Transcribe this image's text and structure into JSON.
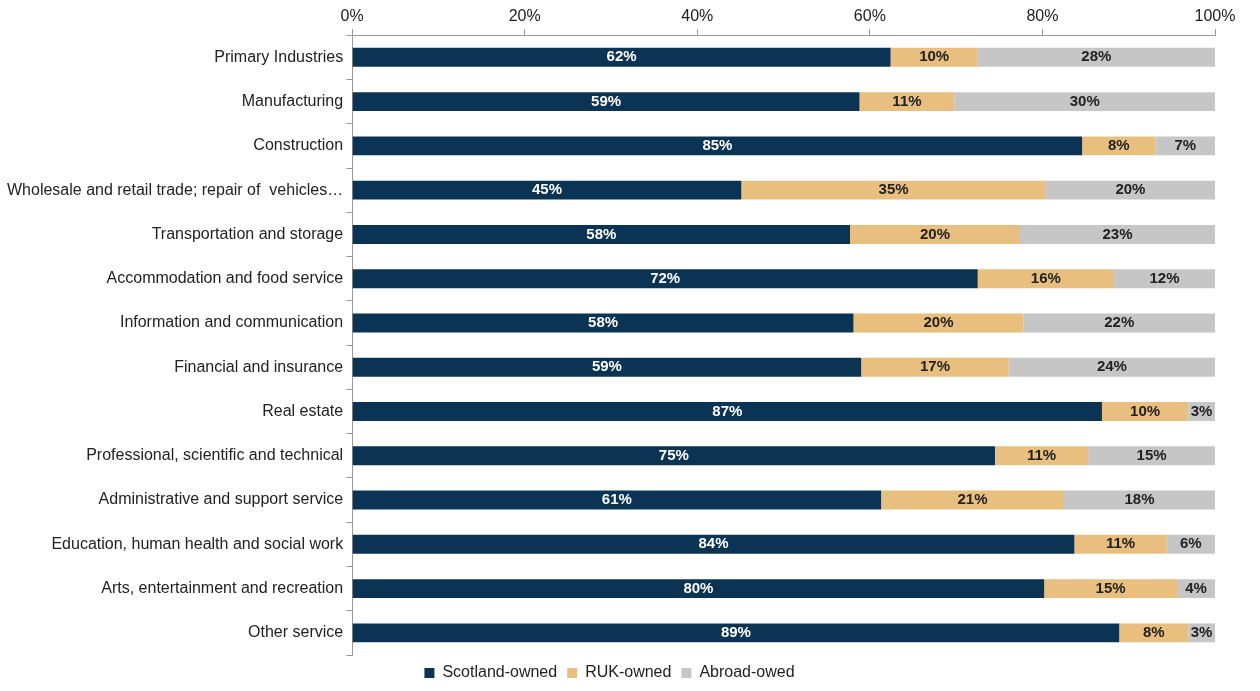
{
  "chart_data": {
    "type": "bar",
    "orientation": "horizontal",
    "stacked": true,
    "categories": [
      "Primary Industries",
      "Manufacturing",
      "Construction",
      "Wholesale and retail trade; repair of  vehicles…",
      "Transportation and storage",
      "Accommodation and food service",
      "Information and communication",
      "Financial and insurance",
      "Real estate",
      "Professional, scientific and technical",
      "Administrative and support service",
      "Education, human health and social work",
      "Arts, entertainment and recreation",
      "Other service"
    ],
    "series": [
      {
        "name": "Scotland-owned",
        "color": "#0b3454",
        "values": [
          62.4,
          58.8,
          84.6,
          45.1,
          57.7,
          72.5,
          58.1,
          59.0,
          86.9,
          74.5,
          61.3,
          83.7,
          80.2,
          88.9
        ],
        "value_labels": [
          "62%",
          "59%",
          "85%",
          "45%",
          "58%",
          "72%",
          "58%",
          "59%",
          "87%",
          "75%",
          "61%",
          "84%",
          "80%",
          "89%"
        ]
      },
      {
        "name": "RUK-owned",
        "color": "#e8bf7f",
        "values": [
          10.1,
          11.0,
          8.5,
          35.3,
          19.7,
          15.8,
          19.7,
          17.1,
          10.0,
          10.8,
          21.2,
          10.7,
          15.4,
          8.0
        ],
        "value_labels": [
          "10%",
          "11%",
          "8%",
          "35%",
          "20%",
          "16%",
          "20%",
          "17%",
          "10%",
          "11%",
          "21%",
          "11%",
          "15%",
          "8%"
        ]
      },
      {
        "name": "Abroad-owed",
        "color": "#c6c6c6",
        "values": [
          27.5,
          30.2,
          6.9,
          19.6,
          22.6,
          11.7,
          22.2,
          23.9,
          3.1,
          14.7,
          17.5,
          5.6,
          4.4,
          3.1
        ],
        "value_labels": [
          "28%",
          "30%",
          "7%",
          "20%",
          "23%",
          "12%",
          "22%",
          "24%",
          "3%",
          "15%",
          "18%",
          "6%",
          "4%",
          "3%"
        ]
      }
    ],
    "xlim": [
      0,
      100
    ],
    "xticks": [
      {
        "value": 0,
        "label": "0%"
      },
      {
        "value": 20,
        "label": "20%"
      },
      {
        "value": 40,
        "label": "40%"
      },
      {
        "value": 60,
        "label": "60%"
      },
      {
        "value": 80,
        "label": "80%"
      },
      {
        "value": 100,
        "label": "100%"
      }
    ],
    "grid": false,
    "legend": "bottom"
  }
}
